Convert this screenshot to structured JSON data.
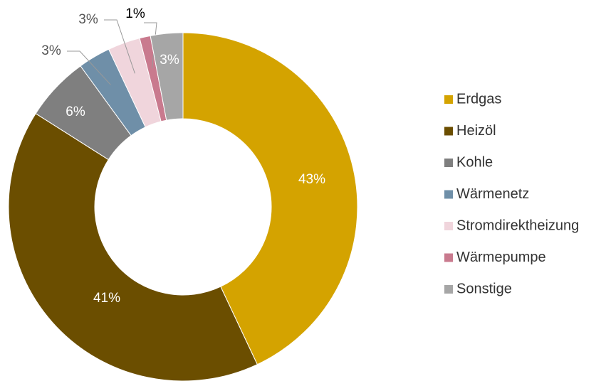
{
  "chart_data": {
    "type": "donut",
    "categories": [
      "Erdgas",
      "Heizöl",
      "Kohle",
      "Wärmenetz",
      "Stromdirektheizung",
      "Wärmepumpe",
      "Sonstige"
    ],
    "values": [
      43,
      41,
      6,
      3,
      3,
      1,
      3
    ],
    "value_labels": [
      "43%",
      "41%",
      "6%",
      "3%",
      "3%",
      "1%",
      "3%"
    ],
    "colors": [
      "#d4a300",
      "#6b4e00",
      "#7f7f7f",
      "#6f8fa8",
      "#f0d5dc",
      "#c97a8e",
      "#a6a6a6"
    ],
    "legend": "right"
  }
}
